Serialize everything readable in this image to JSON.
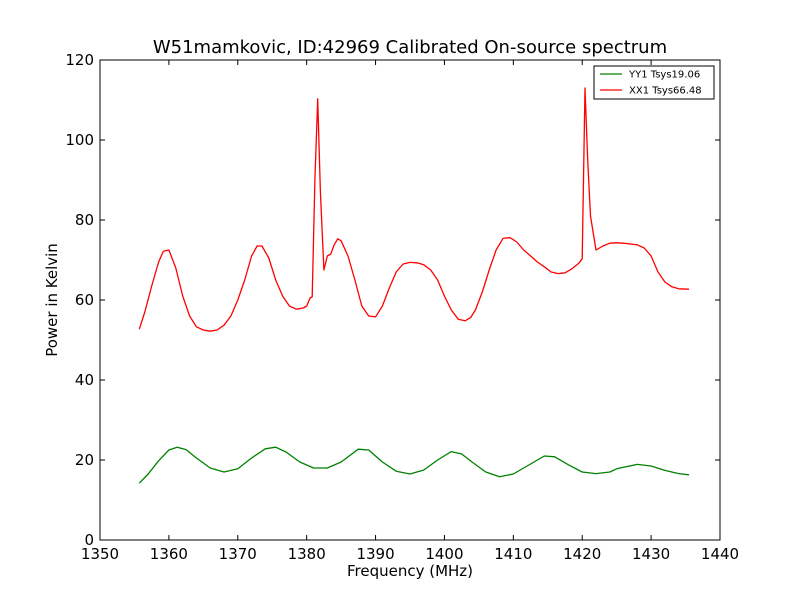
{
  "chart_data": {
    "type": "line",
    "title": "W51mamkovic, ID:42969 Calibrated On-source spectrum",
    "xlabel": "Frequency (MHz)",
    "ylabel": "Power in Kelvin",
    "xlim": [
      1350,
      1440
    ],
    "ylim": [
      0,
      120
    ],
    "xticks": [
      "1350",
      "1360",
      "1370",
      "1380",
      "1390",
      "1400",
      "1410",
      "1420",
      "1430",
      "1440"
    ],
    "yticks": [
      "0",
      "20",
      "40",
      "60",
      "80",
      "100",
      "120"
    ],
    "grid": false,
    "legend_position": "top-right",
    "series": [
      {
        "name": "YY1 Tsys19.06",
        "color": "#008000",
        "x": [
          1355.7,
          1357.0,
          1358.5,
          1360.0,
          1361.2,
          1362.5,
          1364.0,
          1366.0,
          1368.0,
          1370.0,
          1372.0,
          1374.0,
          1375.5,
          1377.0,
          1379.0,
          1381.0,
          1383.0,
          1385.0,
          1387.5,
          1389.0,
          1391.0,
          1393.0,
          1395.0,
          1397.0,
          1399.0,
          1401.0,
          1402.5,
          1404.0,
          1406.0,
          1408.0,
          1410.0,
          1412.0,
          1414.5,
          1416.0,
          1418.0,
          1420.0,
          1422.0,
          1424.0,
          1425.0,
          1426.0,
          1428.0,
          1430.0,
          1432.0,
          1434.0,
          1435.5
        ],
        "values": [
          14.2,
          16.5,
          19.8,
          22.5,
          23.2,
          22.6,
          20.5,
          18.0,
          17.0,
          17.8,
          20.5,
          22.8,
          23.2,
          22.0,
          19.5,
          18.0,
          18.0,
          19.5,
          22.7,
          22.5,
          19.5,
          17.2,
          16.5,
          17.5,
          20.0,
          22.1,
          21.5,
          19.5,
          17.0,
          15.8,
          16.5,
          18.5,
          21.0,
          20.8,
          18.8,
          17.0,
          16.6,
          17.0,
          17.8,
          18.2,
          18.9,
          18.5,
          17.4,
          16.6,
          16.3
        ]
      },
      {
        "name": "XX1 Tsys66.48",
        "color": "#ff0000",
        "x": [
          1355.7,
          1356.5,
          1357.5,
          1358.5,
          1359.2,
          1360.0,
          1361.0,
          1362.0,
          1363.0,
          1364.0,
          1365.0,
          1366.0,
          1367.0,
          1368.0,
          1369.0,
          1370.0,
          1371.0,
          1372.0,
          1372.8,
          1373.5,
          1374.5,
          1375.5,
          1376.5,
          1377.5,
          1378.5,
          1379.5,
          1380.0,
          1380.5,
          1380.8,
          1381.2,
          1381.6,
          1382.0,
          1382.5,
          1383.0,
          1383.5,
          1384.0,
          1384.5,
          1385.0,
          1386.0,
          1387.0,
          1388.0,
          1389.0,
          1390.0,
          1391.0,
          1392.0,
          1393.0,
          1394.0,
          1395.0,
          1396.0,
          1397.0,
          1398.0,
          1399.0,
          1400.0,
          1401.0,
          1402.0,
          1403.0,
          1403.8,
          1404.5,
          1405.5,
          1406.5,
          1407.5,
          1408.5,
          1409.5,
          1410.5,
          1411.5,
          1412.5,
          1413.5,
          1414.5,
          1415.5,
          1416.5,
          1417.5,
          1418.5,
          1419.5,
          1420.0,
          1420.4,
          1420.8,
          1421.2,
          1422.0,
          1423.0,
          1424.0,
          1425.0,
          1426.0,
          1427.0,
          1428.0,
          1429.0,
          1430.0,
          1431.0,
          1432.0,
          1433.0,
          1434.0,
          1435.5
        ],
        "values": [
          52.7,
          57.0,
          63.5,
          69.5,
          72.2,
          72.5,
          68.0,
          61.0,
          56.0,
          53.3,
          52.5,
          52.2,
          52.5,
          53.7,
          56.0,
          60.0,
          65.0,
          71.0,
          73.5,
          73.5,
          70.5,
          65.0,
          61.0,
          58.5,
          57.7,
          58.0,
          58.5,
          60.5,
          60.8,
          90.0,
          110.3,
          87.0,
          67.5,
          71.0,
          71.5,
          73.8,
          75.3,
          74.8,
          71.0,
          65.0,
          58.5,
          56.0,
          55.8,
          58.5,
          63.0,
          67.0,
          69.0,
          69.4,
          69.3,
          68.8,
          67.5,
          65.0,
          61.0,
          57.5,
          55.2,
          54.8,
          55.6,
          57.5,
          62.0,
          67.5,
          72.5,
          75.4,
          75.6,
          74.5,
          72.5,
          71.0,
          69.5,
          68.3,
          67.0,
          66.6,
          66.8,
          67.8,
          69.2,
          70.3,
          113.0,
          95.0,
          81.0,
          72.5,
          73.5,
          74.2,
          74.3,
          74.2,
          74.0,
          73.8,
          73.0,
          71.0,
          67.0,
          64.5,
          63.3,
          62.8,
          62.7
        ]
      }
    ]
  }
}
